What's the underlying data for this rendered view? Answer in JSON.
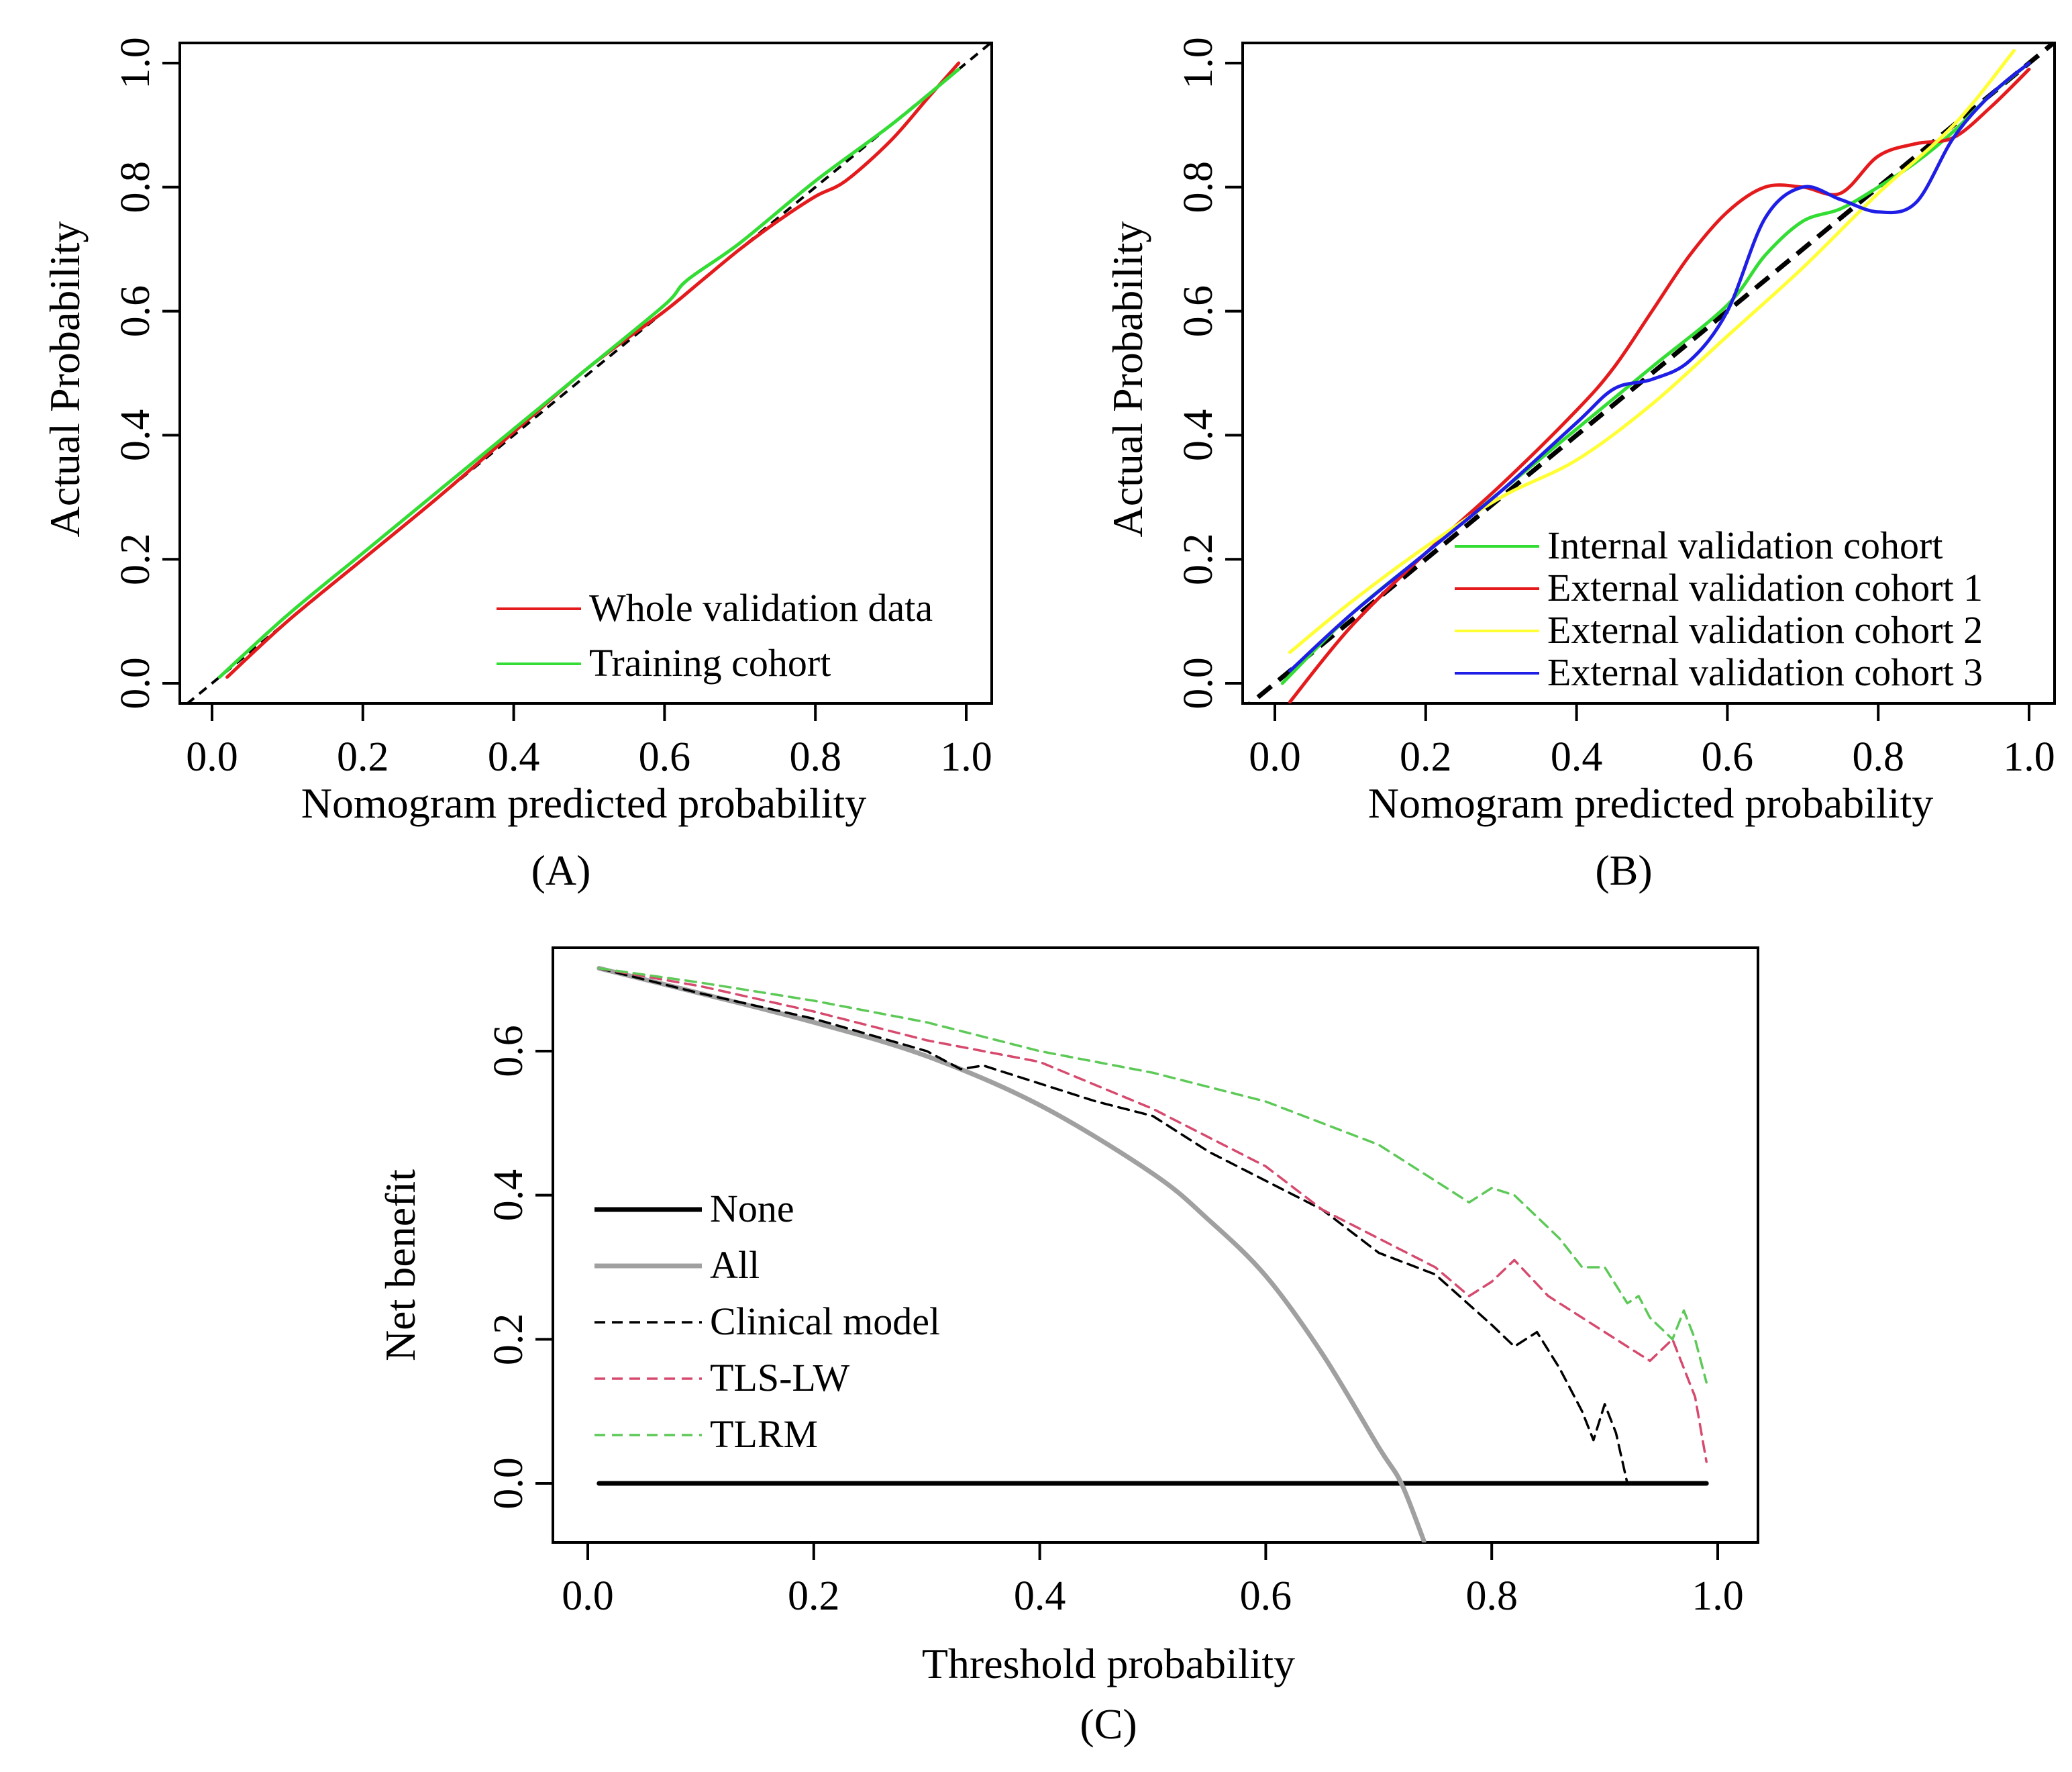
{
  "chart_data": [
    {
      "type": "line",
      "panel": "A",
      "panel_label": "(A)",
      "xlabel": "Nomogram predicted probability",
      "ylabel": "Actual Probability",
      "xlim": [
        0,
        1
      ],
      "ylim": [
        0,
        1
      ],
      "xticks": [
        "0.0",
        "0.2",
        "0.4",
        "0.6",
        "0.8",
        "1.0"
      ],
      "yticks": [
        "0.0",
        "0.2",
        "0.4",
        "0.6",
        "0.8",
        "1.0"
      ],
      "legend_position": "bottom-right",
      "reference": {
        "name": "Ideal",
        "style": "dashed",
        "color": "#000000",
        "x": [
          0,
          1
        ],
        "y": [
          0,
          1
        ]
      },
      "series": [
        {
          "name": "Whole validation data",
          "color": "#e41a1c",
          "style": "solid",
          "x": [
            0.02,
            0.1,
            0.2,
            0.3,
            0.4,
            0.5,
            0.6,
            0.65,
            0.7,
            0.75,
            0.8,
            0.84,
            0.9,
            0.95,
            0.99
          ],
          "y": [
            0.01,
            0.1,
            0.2,
            0.3,
            0.405,
            0.51,
            0.6,
            0.65,
            0.7,
            0.745,
            0.785,
            0.81,
            0.875,
            0.945,
            1.0
          ]
        },
        {
          "name": "Training cohort",
          "color": "#33dd33",
          "style": "solid",
          "x": [
            0.01,
            0.1,
            0.2,
            0.3,
            0.4,
            0.5,
            0.6,
            0.63,
            0.7,
            0.8,
            0.9,
            0.99
          ],
          "y": [
            0.01,
            0.11,
            0.21,
            0.31,
            0.41,
            0.51,
            0.61,
            0.65,
            0.71,
            0.81,
            0.9,
            0.99
          ]
        }
      ]
    },
    {
      "type": "line",
      "panel": "B",
      "panel_label": "(B)",
      "xlabel": "Nomogram predicted probability",
      "ylabel": "Actual Probability",
      "xlim": [
        0,
        1
      ],
      "ylim": [
        0,
        1
      ],
      "xticks": [
        "0.0",
        "0.2",
        "0.4",
        "0.6",
        "0.8",
        "1.0"
      ],
      "yticks": [
        "0.0",
        "0.2",
        "0.4",
        "0.6",
        "0.8",
        "1.0"
      ],
      "legend_position": "bottom-right",
      "reference": {
        "name": "Ideal",
        "style": "dashed",
        "color": "#000000",
        "x": [
          0,
          1
        ],
        "y": [
          0,
          1
        ]
      },
      "series": [
        {
          "name": "Internal validation cohort",
          "color": "#33dd33",
          "style": "solid",
          "x": [
            0.01,
            0.1,
            0.2,
            0.3,
            0.4,
            0.5,
            0.6,
            0.65,
            0.7,
            0.75,
            0.8,
            0.85,
            0.9,
            0.95,
            1.0
          ],
          "y": [
            0.0,
            0.11,
            0.21,
            0.31,
            0.41,
            0.51,
            0.61,
            0.69,
            0.745,
            0.765,
            0.8,
            0.84,
            0.89,
            0.95,
            1.0
          ]
        },
        {
          "name": "External validation cohort 1",
          "color": "#e41a1c",
          "style": "solid",
          "x": [
            0.02,
            0.1,
            0.2,
            0.3,
            0.4,
            0.45,
            0.5,
            0.55,
            0.6,
            0.65,
            0.7,
            0.75,
            0.8,
            0.85,
            0.9,
            0.95,
            1.0
          ],
          "y": [
            -0.03,
            0.09,
            0.21,
            0.32,
            0.44,
            0.51,
            0.6,
            0.69,
            0.76,
            0.8,
            0.8,
            0.79,
            0.85,
            0.87,
            0.88,
            0.93,
            0.99
          ]
        },
        {
          "name": "External validation cohort 2",
          "color": "#ffff33",
          "style": "solid",
          "x": [
            0.02,
            0.1,
            0.2,
            0.3,
            0.4,
            0.5,
            0.6,
            0.7,
            0.8,
            0.9,
            0.98
          ],
          "y": [
            0.05,
            0.13,
            0.22,
            0.3,
            0.36,
            0.45,
            0.56,
            0.67,
            0.79,
            0.9,
            1.02
          ]
        },
        {
          "name": "External validation cohort 3",
          "color": "#1e1ee6",
          "style": "solid",
          "x": [
            0.02,
            0.1,
            0.2,
            0.3,
            0.4,
            0.45,
            0.5,
            0.55,
            0.6,
            0.65,
            0.7,
            0.75,
            0.8,
            0.85,
            0.9,
            0.95,
            1.0
          ],
          "y": [
            0.02,
            0.11,
            0.21,
            0.31,
            0.42,
            0.475,
            0.49,
            0.52,
            0.6,
            0.75,
            0.8,
            0.78,
            0.76,
            0.775,
            0.88,
            0.95,
            1.0
          ]
        }
      ]
    },
    {
      "type": "line",
      "panel": "C",
      "panel_label": "(C)",
      "xlabel": "Threshold probability",
      "ylabel": "Net benefit",
      "xlim": [
        0,
        1
      ],
      "ylim": [
        -0.08,
        0.74
      ],
      "xticks": [
        "0.0",
        "0.2",
        "0.4",
        "0.6",
        "0.8",
        "1.0"
      ],
      "yticks": [
        "0.0",
        "0.2",
        "0.4",
        "0.6"
      ],
      "legend_position": "middle-left",
      "series": [
        {
          "name": "None",
          "color": "#000000",
          "style": "solid-thick",
          "x": [
            0.01,
            0.99
          ],
          "y": [
            0.0,
            0.0
          ]
        },
        {
          "name": "All",
          "color": "#a0a0a0",
          "style": "solid-thick",
          "x": [
            0.01,
            0.1,
            0.2,
            0.3,
            0.4,
            0.5,
            0.55,
            0.6,
            0.65,
            0.7,
            0.72,
            0.74
          ],
          "y": [
            0.715,
            0.68,
            0.64,
            0.593,
            0.525,
            0.43,
            0.365,
            0.288,
            0.18,
            0.05,
            0.0,
            -0.08
          ]
        },
        {
          "name": "Clinical model",
          "color": "#000000",
          "style": "dashed",
          "x": [
            0.01,
            0.1,
            0.2,
            0.3,
            0.33,
            0.35,
            0.4,
            0.45,
            0.5,
            0.55,
            0.6,
            0.65,
            0.7,
            0.75,
            0.8,
            0.82,
            0.84,
            0.86,
            0.88,
            0.89,
            0.9,
            0.91,
            0.92
          ],
          "y": [
            0.715,
            0.68,
            0.645,
            0.6,
            0.575,
            0.58,
            0.555,
            0.53,
            0.51,
            0.46,
            0.42,
            0.38,
            0.32,
            0.29,
            0.22,
            0.19,
            0.21,
            0.16,
            0.1,
            0.06,
            0.11,
            0.07,
            0.0
          ]
        },
        {
          "name": "TLS-LW",
          "color": "#d64a6e",
          "style": "dashed",
          "x": [
            0.01,
            0.1,
            0.2,
            0.3,
            0.4,
            0.5,
            0.6,
            0.65,
            0.7,
            0.75,
            0.78,
            0.8,
            0.82,
            0.85,
            0.88,
            0.9,
            0.92,
            0.94,
            0.96,
            0.98,
            0.99
          ],
          "y": [
            0.715,
            0.69,
            0.655,
            0.615,
            0.585,
            0.52,
            0.44,
            0.38,
            0.34,
            0.3,
            0.26,
            0.28,
            0.31,
            0.26,
            0.23,
            0.21,
            0.19,
            0.17,
            0.2,
            0.12,
            0.03
          ]
        },
        {
          "name": "TLRM",
          "color": "#5dc957",
          "style": "dashed",
          "x": [
            0.01,
            0.1,
            0.2,
            0.3,
            0.4,
            0.5,
            0.6,
            0.7,
            0.78,
            0.8,
            0.82,
            0.84,
            0.86,
            0.88,
            0.9,
            0.92,
            0.93,
            0.94,
            0.96,
            0.97,
            0.98,
            0.99
          ],
          "y": [
            0.715,
            0.695,
            0.67,
            0.64,
            0.6,
            0.57,
            0.53,
            0.47,
            0.39,
            0.41,
            0.4,
            0.37,
            0.34,
            0.3,
            0.3,
            0.25,
            0.26,
            0.23,
            0.2,
            0.24,
            0.2,
            0.14
          ]
        }
      ]
    }
  ]
}
